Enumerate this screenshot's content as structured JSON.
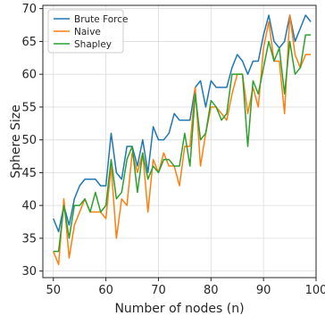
{
  "chart_data": {
    "type": "line",
    "xlabel": "Number of nodes (n)",
    "ylabel": "Sphere Size",
    "xlim": [
      48,
      100
    ],
    "ylim": [
      29,
      70.5
    ],
    "xticks": [
      50,
      60,
      70,
      80,
      90,
      100
    ],
    "yticks": [
      30,
      35,
      40,
      45,
      50,
      55,
      60,
      65,
      70
    ],
    "grid": true,
    "legend_position": "top-left",
    "x": [
      50,
      51,
      52,
      53,
      54,
      55,
      56,
      57,
      58,
      59,
      60,
      61,
      62,
      63,
      64,
      65,
      66,
      67,
      68,
      69,
      70,
      71,
      72,
      73,
      74,
      75,
      76,
      77,
      78,
      79,
      80,
      81,
      82,
      83,
      84,
      85,
      86,
      87,
      88,
      89,
      90,
      91,
      92,
      93,
      94,
      95,
      96,
      97,
      98,
      99
    ],
    "series": [
      {
        "name": "Brute Force",
        "color": "#1f77b4",
        "values": [
          38,
          36,
          40,
          37,
          41,
          43,
          44,
          44,
          44,
          43,
          43,
          51,
          45,
          44,
          49,
          49,
          46,
          50,
          45,
          52,
          50,
          50,
          51,
          54,
          53,
          53,
          53,
          58,
          59,
          55,
          59,
          58,
          58,
          58,
          61,
          63,
          62,
          60,
          62,
          62,
          66,
          69,
          65,
          64,
          65,
          69,
          65,
          67,
          69,
          68
        ]
      },
      {
        "name": "Naive",
        "color": "#ff7f0e",
        "values": [
          33,
          31,
          41,
          32,
          37,
          39,
          41,
          39,
          39,
          39,
          38,
          46,
          35,
          41,
          40,
          48,
          45,
          48,
          39,
          47,
          45,
          48,
          46,
          46,
          43,
          49,
          49,
          58,
          46,
          51,
          55,
          55,
          54,
          53,
          57,
          60,
          60,
          54,
          58,
          55,
          64,
          68,
          62,
          62,
          54,
          69,
          63,
          61,
          63,
          63
        ]
      },
      {
        "name": "Shapley",
        "color": "#2ca02c",
        "values": [
          33,
          33,
          40,
          35,
          40,
          40,
          41,
          39,
          42,
          39,
          40,
          47,
          41,
          42,
          47,
          49,
          42,
          48,
          44,
          46,
          45,
          47,
          47,
          46,
          46,
          51,
          46,
          57,
          50,
          51,
          56,
          55,
          53,
          54,
          60,
          60,
          60,
          49,
          59,
          57,
          61,
          65,
          62,
          64,
          57,
          65,
          60,
          61,
          66,
          66
        ]
      }
    ]
  }
}
